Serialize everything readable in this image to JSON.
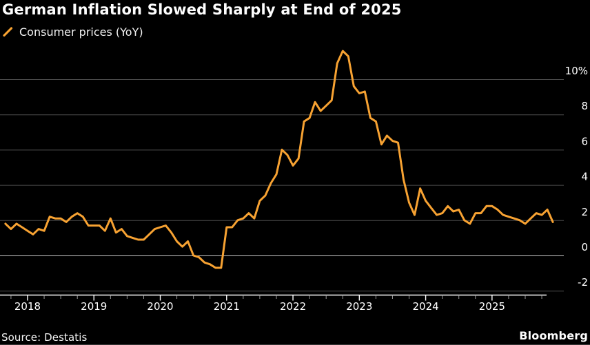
{
  "header": {
    "title": "German Inflation Slowed Sharply at End of 2025"
  },
  "legend": {
    "label": "Consumer prices (YoY)",
    "marker_icon": "orange-slash-icon"
  },
  "footer": {
    "source": "Source: Destatis",
    "brand": "Bloomberg"
  },
  "colors": {
    "background": "#000000",
    "line": "#F7A232",
    "grid": "#4d4d4d",
    "zero_line": "#cccccc",
    "axis": "#ffffff",
    "minor_tick": "#9a9a9a",
    "text": "#ffffff"
  },
  "chart_data": {
    "type": "line",
    "title": "German Inflation Slowed Sharply at End of 2025",
    "series_name": "Consumer prices (YoY)",
    "unit": "%",
    "frequency": "monthly",
    "start": "2017-09",
    "end": "2025-12",
    "xlabel": "",
    "ylabel": "",
    "ylim": [
      -2.3,
      12
    ],
    "grid": true,
    "legend_position": "top-left",
    "y_axis_side": "right",
    "y_ticks": [
      -2,
      0,
      2,
      4,
      6,
      8,
      10
    ],
    "y_tick_labels": [
      "-2",
      "0",
      "2",
      "4",
      "6",
      "8",
      "10%"
    ],
    "x_tick_years": [
      "2018",
      "2019",
      "2020",
      "2021",
      "2022",
      "2023",
      "2024",
      "2025"
    ],
    "values": [
      1.8,
      1.5,
      1.8,
      1.6,
      1.4,
      1.2,
      1.5,
      1.4,
      2.2,
      2.1,
      2.1,
      1.9,
      2.2,
      2.4,
      2.2,
      1.7,
      1.7,
      1.7,
      1.4,
      2.1,
      1.3,
      1.5,
      1.1,
      1.0,
      0.9,
      0.9,
      1.2,
      1.5,
      1.6,
      1.7,
      1.3,
      0.8,
      0.5,
      0.8,
      0.0,
      -0.1,
      -0.4,
      -0.5,
      -0.7,
      -0.7,
      1.6,
      1.6,
      2.0,
      2.1,
      2.4,
      2.1,
      3.1,
      3.4,
      4.1,
      4.6,
      6.0,
      5.7,
      5.1,
      5.5,
      7.6,
      7.8,
      8.7,
      8.2,
      8.5,
      8.8,
      10.9,
      11.6,
      11.3,
      9.6,
      9.2,
      9.3,
      7.8,
      7.6,
      6.3,
      6.8,
      6.5,
      6.4,
      4.3,
      3.0,
      2.3,
      3.8,
      3.1,
      2.7,
      2.3,
      2.4,
      2.8,
      2.5,
      2.6,
      2.0,
      1.8,
      2.4,
      2.4,
      2.8,
      2.8,
      2.6,
      2.3,
      2.2,
      2.1,
      2.0,
      1.8,
      2.1,
      2.4,
      2.3,
      2.6,
      1.9
    ]
  }
}
